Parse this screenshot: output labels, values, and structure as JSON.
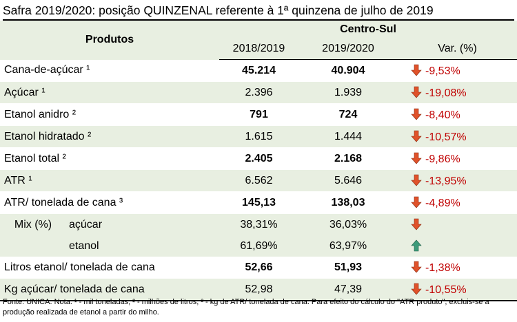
{
  "title": "Safra 2019/2020: posição QUINZENAL referente à 1ª quinzena de julho de 2019",
  "header": {
    "produtos": "Produtos",
    "region": "Centro-Sul",
    "col1": "2018/2019",
    "col2": "2019/2020",
    "col3": "Var. (%)"
  },
  "rows": [
    {
      "label": "Cana-de-açúcar ¹",
      "v1": "45.214",
      "v2": "40.904",
      "var": "-9,53%"
    },
    {
      "label": "Açúcar ¹",
      "v1": "2.396",
      "v2": "1.939",
      "var": "-19,08%"
    },
    {
      "label": "Etanol anidro ²",
      "v1": "791",
      "v2": "724",
      "var": "-8,40%"
    },
    {
      "label": "Etanol hidratado ²",
      "v1": "1.615",
      "v2": "1.444",
      "var": "-10,57%"
    },
    {
      "label": "Etanol total ²",
      "v1": "2.405",
      "v2": "2.168",
      "var": "-9,86%"
    },
    {
      "label": "ATR ¹",
      "v1": "6.562",
      "v2": "5.646",
      "var": "-13,95%"
    },
    {
      "label": "ATR/ tonelada de cana ³",
      "v1": "145,13",
      "v2": "138,03",
      "var": "-4,89%"
    }
  ],
  "mix": {
    "label": "Mix (%)",
    "acucar": {
      "label": "açúcar",
      "v1": "38,31%",
      "v2": "36,03%",
      "trend": "down"
    },
    "etanol": {
      "label": "etanol",
      "v1": "61,69%",
      "v2": "63,97%",
      "trend": "up"
    }
  },
  "rows2": [
    {
      "label": "Litros etanol/ tonelada de cana",
      "v1": "52,66",
      "v2": "51,93",
      "var": "-1,38%"
    },
    {
      "label": "Kg açúcar/ tonelada de cana",
      "v1": "52,98",
      "v2": "47,39",
      "var": "-10,55%"
    }
  ],
  "footnote": "Fonte: UNICA. Nota: ¹ - mil toneladas; ² - milhões de litros; ³ - kg de ATR/ tonelada de cana. Para efeito do cálculo do \"ATR produto\", excluis-se a produção realizada de etanol a partir do milho.",
  "colors": {
    "down_arrow": "#e0522a",
    "up_arrow": "#3d9b7a",
    "shade": "#e8efe1",
    "negative_text": "#c00000"
  }
}
